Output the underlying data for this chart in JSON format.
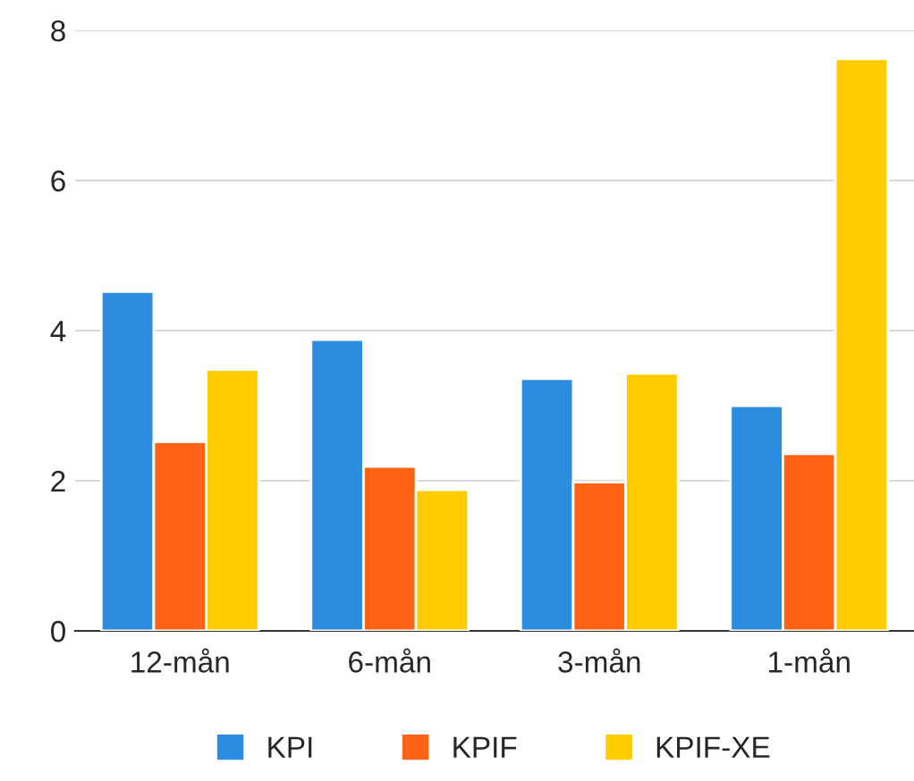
{
  "chart_data": {
    "type": "bar",
    "categories": [
      "12-mån",
      "6-mån",
      "3-mån",
      "1-mån"
    ],
    "series": [
      {
        "name": "KPI",
        "color": "#2b8ce0",
        "values": [
          4.52,
          3.88,
          3.36,
          3.0
        ]
      },
      {
        "name": "KPIF",
        "color": "#ff6313",
        "values": [
          2.52,
          2.19,
          1.98,
          2.36
        ]
      },
      {
        "name": "KPIF-XE",
        "color": "#ffcc00",
        "values": [
          3.48,
          1.88,
          3.43,
          7.62
        ]
      }
    ],
    "ylim": [
      0,
      8
    ],
    "yticks": [
      0,
      2,
      4,
      6,
      8
    ],
    "grid": "y",
    "legend": "bottom"
  }
}
